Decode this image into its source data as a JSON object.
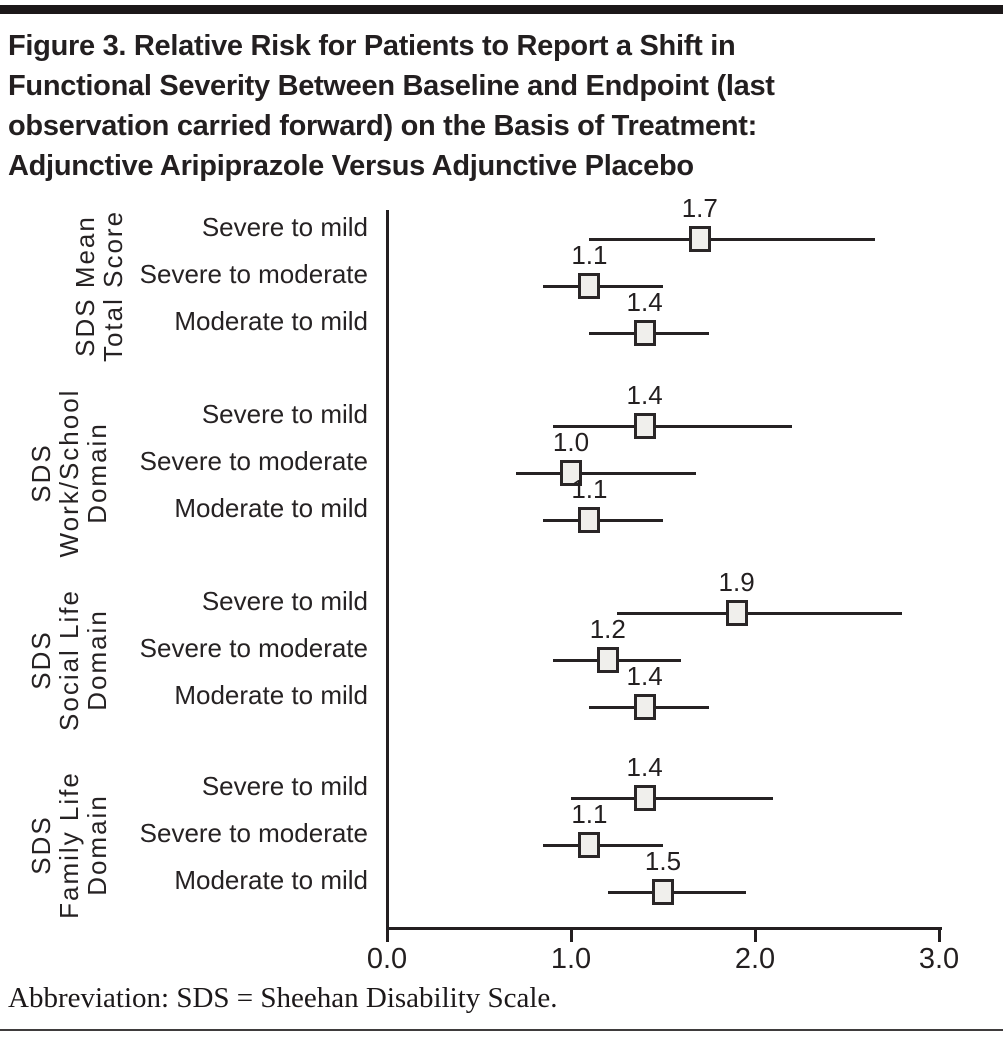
{
  "figure": {
    "title_lines": [
      "Figure 3. Relative Risk for Patients to Report a Shift in",
      "Functional Severity Between Baseline and Endpoint (last",
      "observation carried forward) on the Basis of Treatment:",
      "Adjunctive Aripiprazole Versus Adjunctive Placebo"
    ],
    "footnote": "Abbreviation: SDS = Sheehan Disability Scale."
  },
  "chart_data": {
    "type": "forest",
    "title": "Figure 3. Relative Risk for Patients to Report a Shift in Functional Severity Between Baseline and Endpoint (last observation carried forward) on the Basis of Treatment: Adjunctive Aripiprazole Versus Adjunctive Placebo",
    "x_axis": {
      "range": [
        0.0,
        3.0
      ],
      "tick_values": [
        0,
        1,
        2,
        3
      ],
      "tick_labels": [
        "0.0",
        "1.0",
        "2.0",
        "3.0"
      ],
      "grid": false
    },
    "marker_style": {
      "shape": "square",
      "fill": "#f0efec",
      "stroke": "#2a2627"
    },
    "groups": [
      {
        "label_lines": [
          "SDS Mean",
          "Total Score"
        ],
        "rows": [
          {
            "label": "Severe to mild",
            "value": 1.7,
            "value_label": "1.7",
            "ci_low": 1.1,
            "ci_high": 2.65
          },
          {
            "label": "Severe to moderate",
            "value": 1.1,
            "value_label": "1.1",
            "ci_low": 0.85,
            "ci_high": 1.5
          },
          {
            "label": "Moderate to mild",
            "value": 1.4,
            "value_label": "1.4",
            "ci_low": 1.1,
            "ci_high": 1.75
          }
        ]
      },
      {
        "label_lines": [
          "SDS",
          "Work/School",
          "Domain"
        ],
        "rows": [
          {
            "label": "Severe to mild",
            "value": 1.4,
            "value_label": "1.4",
            "ci_low": 0.9,
            "ci_high": 2.2
          },
          {
            "label": "Severe to moderate",
            "value": 1.0,
            "value_label": "1.0",
            "ci_low": 0.7,
            "ci_high": 1.68
          },
          {
            "label": "Moderate to mild",
            "value": 1.1,
            "value_label": "1.1",
            "ci_low": 0.85,
            "ci_high": 1.5
          }
        ]
      },
      {
        "label_lines": [
          "SDS",
          "Social Life",
          "Domain"
        ],
        "rows": [
          {
            "label": "Severe to mild",
            "value": 1.9,
            "value_label": "1.9",
            "ci_low": 1.25,
            "ci_high": 2.8
          },
          {
            "label": "Severe to moderate",
            "value": 1.2,
            "value_label": "1.2",
            "ci_low": 0.9,
            "ci_high": 1.6
          },
          {
            "label": "Moderate to mild",
            "value": 1.4,
            "value_label": "1.4",
            "ci_low": 1.1,
            "ci_high": 1.75
          }
        ]
      },
      {
        "label_lines": [
          "SDS",
          "Family Life",
          "Domain"
        ],
        "rows": [
          {
            "label": "Severe to mild",
            "value": 1.4,
            "value_label": "1.4",
            "ci_low": 1.0,
            "ci_high": 2.1
          },
          {
            "label": "Severe to moderate",
            "value": 1.1,
            "value_label": "1.1",
            "ci_low": 0.85,
            "ci_high": 1.5
          },
          {
            "label": "Moderate to mild",
            "value": 1.5,
            "value_label": "1.5",
            "ci_low": 1.2,
            "ci_high": 1.95
          }
        ]
      }
    ]
  }
}
